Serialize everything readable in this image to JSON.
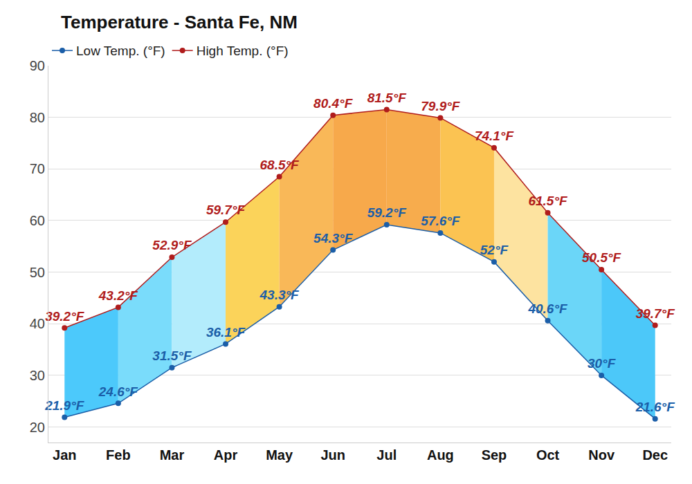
{
  "chart_data": {
    "type": "line",
    "title": "Temperature - Santa Fe, NM",
    "categories": [
      "Jan",
      "Feb",
      "Mar",
      "Apr",
      "May",
      "Jun",
      "Jul",
      "Aug",
      "Sep",
      "Oct",
      "Nov",
      "Dec"
    ],
    "series": [
      {
        "name": "Low Temp. (°F)",
        "color": "#1b5ea8",
        "values": [
          21.9,
          24.6,
          31.5,
          36.1,
          43.3,
          54.3,
          59.2,
          57.6,
          52,
          40.6,
          30,
          21.6
        ],
        "value_labels": [
          "21.9°F",
          "24.6°F",
          "31.5°F",
          "36.1°F",
          "43.3°F",
          "54.3°F",
          "59.2°F",
          "57.6°F",
          "52°F",
          "40.6°F",
          "30°F",
          "21.6°F"
        ]
      },
      {
        "name": "High Temp. (°F)",
        "color": "#b01c1c",
        "values": [
          39.2,
          43.2,
          52.9,
          59.7,
          68.5,
          80.4,
          81.5,
          79.9,
          74.1,
          61.5,
          50.5,
          39.7
        ],
        "value_labels": [
          "39.2°F",
          "43.2°F",
          "52.9°F",
          "59.7°F",
          "68.5°F",
          "80.4°F",
          "81.5°F",
          "79.9°F",
          "74.1°F",
          "61.5°F",
          "50.5°F",
          "39.7°F"
        ]
      }
    ],
    "ylim": [
      17,
      90
    ],
    "yticks": [
      20,
      30,
      40,
      50,
      60,
      70,
      80,
      90
    ],
    "grid": true,
    "legend": "top left",
    "data_labels": true,
    "marker": "circle"
  }
}
